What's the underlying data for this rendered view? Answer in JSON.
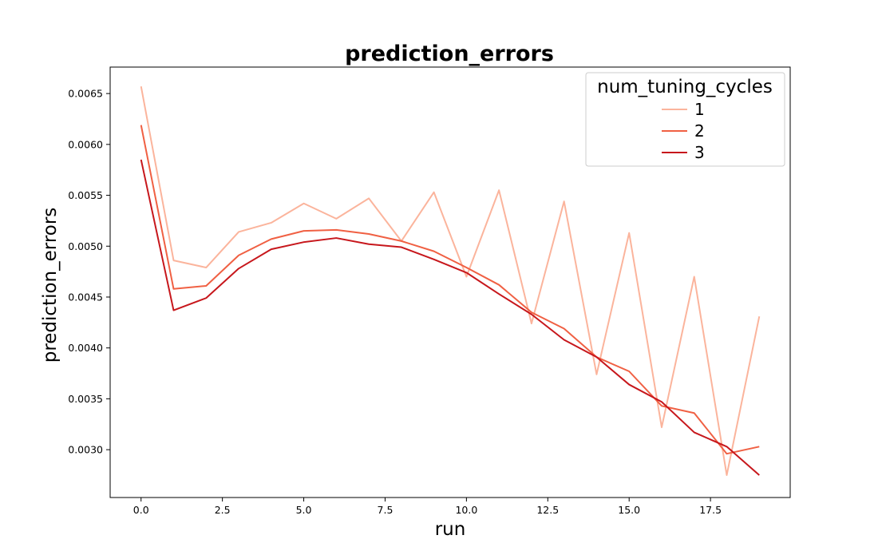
{
  "chart_data": {
    "type": "line",
    "title": "prediction_errors",
    "xlabel": "run",
    "ylabel": "prediction_errors",
    "xlim": [
      -0.95,
      19.95
    ],
    "ylim": [
      0.00253,
      0.00676
    ],
    "x_ticks": [
      0.0,
      2.5,
      5.0,
      7.5,
      10.0,
      12.5,
      15.0,
      17.5
    ],
    "x_tick_labels": [
      "0.0",
      "2.5",
      "5.0",
      "7.5",
      "10.0",
      "12.5",
      "15.0",
      "17.5"
    ],
    "y_ticks": [
      0.003,
      0.0035,
      0.004,
      0.0045,
      0.005,
      0.0055,
      0.006,
      0.0065
    ],
    "y_tick_labels": [
      "0.0030",
      "0.0035",
      "0.0040",
      "0.0045",
      "0.0050",
      "0.0055",
      "0.0060",
      "0.0065"
    ],
    "grid": false,
    "legend": {
      "title": "num_tuning_cycles",
      "placement": "top-right"
    },
    "x": [
      0,
      1,
      2,
      3,
      4,
      5,
      6,
      7,
      8,
      9,
      10,
      11,
      12,
      13,
      14,
      15,
      16,
      17,
      18,
      19
    ],
    "series": [
      {
        "name": "1",
        "color": "#fbb49c",
        "values": [
          0.00657,
          0.00486,
          0.00479,
          0.00514,
          0.00523,
          0.00542,
          0.00527,
          0.00547,
          0.00505,
          0.00553,
          0.0047,
          0.00555,
          0.00424,
          0.00544,
          0.00374,
          0.00513,
          0.00322,
          0.0047,
          0.00275,
          0.00431
        ]
      },
      {
        "name": "2",
        "color": "#f06043",
        "values": [
          0.00619,
          0.00458,
          0.00461,
          0.00491,
          0.00507,
          0.00515,
          0.00516,
          0.00512,
          0.00505,
          0.00495,
          0.00479,
          0.00462,
          0.00435,
          0.00419,
          0.00391,
          0.00377,
          0.00343,
          0.00336,
          0.00296,
          0.00303
        ]
      },
      {
        "name": "3",
        "color": "#c7171c",
        "values": [
          0.00585,
          0.00437,
          0.00449,
          0.00478,
          0.00497,
          0.00504,
          0.00508,
          0.00502,
          0.00499,
          0.00487,
          0.00474,
          0.00453,
          0.00433,
          0.00408,
          0.00391,
          0.00364,
          0.00347,
          0.00317,
          0.00303,
          0.00275
        ]
      }
    ]
  }
}
